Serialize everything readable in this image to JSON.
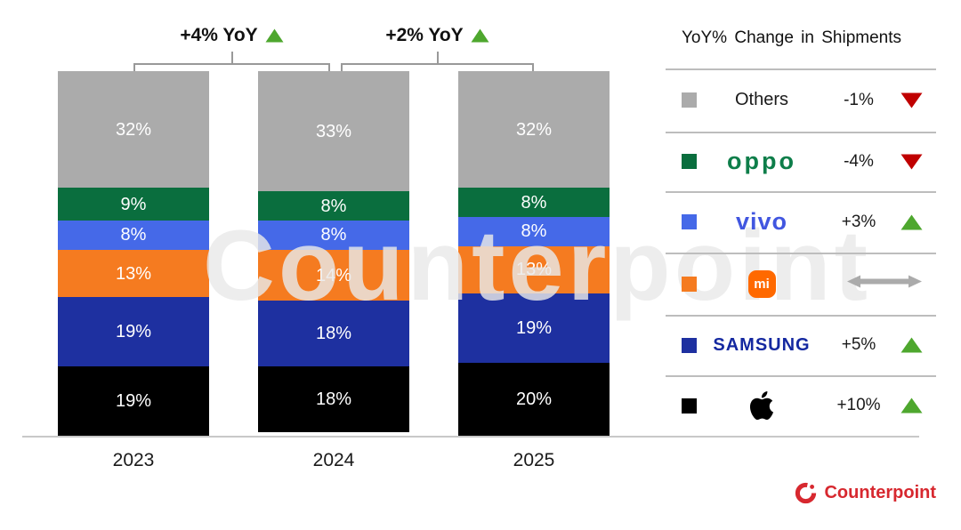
{
  "chart_data": {
    "type": "bar",
    "stacked": true,
    "title": "",
    "xlabel": "",
    "ylabel": "",
    "unit": "%",
    "ylim": [
      0,
      100
    ],
    "grid": false,
    "legend_position": "right",
    "categories": [
      "2023",
      "2024",
      "2025"
    ],
    "series": [
      {
        "name": "Others",
        "color": "#ABABAB",
        "values": [
          32,
          33,
          32
        ]
      },
      {
        "name": "OPPO",
        "color": "#0A6E3E",
        "values": [
          9,
          8,
          8
        ]
      },
      {
        "name": "vivo",
        "color": "#4569E8",
        "values": [
          8,
          8,
          8
        ]
      },
      {
        "name": "Xiaomi",
        "color": "#F57B20",
        "values": [
          13,
          14,
          13
        ]
      },
      {
        "name": "Samsung",
        "color": "#1E30A0",
        "values": [
          19,
          18,
          19
        ]
      },
      {
        "name": "Apple",
        "color": "#000000",
        "values": [
          19,
          18,
          20
        ]
      }
    ],
    "growth_annotations": [
      {
        "label": "+4% YoY",
        "trend": "up",
        "between": [
          "2023",
          "2024"
        ]
      },
      {
        "label": "+2% YoY",
        "trend": "up",
        "between": [
          "2024",
          "2025"
        ]
      }
    ]
  },
  "legend": {
    "title": "YoY% Change in Shipments",
    "rows": [
      {
        "brand": "Others",
        "display": "Others",
        "change": "-1%",
        "trend": "down",
        "swatch": "#ABABAB"
      },
      {
        "brand": "OPPO",
        "display": "oppo",
        "change": "-4%",
        "trend": "down",
        "swatch": "#0A6E3E"
      },
      {
        "brand": "vivo",
        "display": "vivo",
        "change": "+3%",
        "trend": "up",
        "swatch": "#4569E8"
      },
      {
        "brand": "Xiaomi",
        "display": "mi",
        "change": "",
        "trend": "flat",
        "swatch": "#F57B20"
      },
      {
        "brand": "Samsung",
        "display": "SAMSUNG",
        "change": "+5%",
        "trend": "up",
        "swatch": "#1E30A0"
      },
      {
        "brand": "Apple",
        "display": "",
        "change": "+10%",
        "trend": "up",
        "swatch": "#000000"
      }
    ]
  },
  "footer": {
    "brand": "Counterpoint"
  },
  "watermark": {
    "text": "Counterpoint"
  },
  "colors": {
    "up_green": "#4EA72E",
    "down_red": "#C00000",
    "flat_gray": "#ABABAB",
    "oppo_green": "#0E7E4A",
    "vivo_blue": "#4156E0",
    "samsung_blue": "#1428A0",
    "mi_orange": "#FF6900",
    "counterpoint_red": "#D7282F"
  }
}
